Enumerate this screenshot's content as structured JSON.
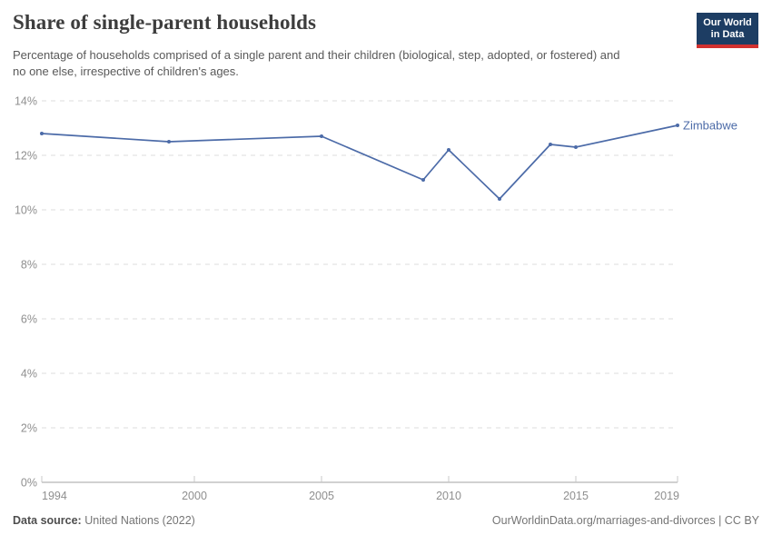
{
  "header": {
    "title": "Share of single-parent households",
    "subtitle": "Percentage of households comprised of a single parent and their children (biological, step, adopted, or fostered) and no one else, irrespective of children's ages.",
    "logo": {
      "line1": "Our World",
      "line2": "in Data"
    }
  },
  "chart_data": {
    "type": "line",
    "title": "Share of single-parent households",
    "x": [
      1994,
      1999,
      2005,
      2009,
      2010,
      2012,
      2014,
      2015,
      2019
    ],
    "series": [
      {
        "name": "Zimbabwe",
        "values": [
          12.8,
          12.5,
          12.7,
          11.1,
          12.2,
          10.4,
          12.4,
          12.3,
          13.1
        ]
      }
    ],
    "xlabel": "",
    "ylabel": "",
    "ylim": [
      0,
      14
    ],
    "y_ticks": [
      0,
      2,
      4,
      6,
      8,
      10,
      12,
      14
    ],
    "y_tick_suffix": "%",
    "x_ticks": [
      1994,
      2000,
      2005,
      2010,
      2015,
      2019
    ],
    "xlim": [
      1994,
      2019
    ],
    "grid": "dashed-horizontal",
    "legend_position": "end-of-line"
  },
  "colors": {
    "line": "#4c6ba8",
    "entity_label": "#4c6ba8",
    "grid": "#dedede",
    "axis": "#a3a3a3",
    "tick": "#c8c8c8",
    "tick_label": "#8f8f8f"
  },
  "footer": {
    "source_label": "Data source:",
    "source_value": "United Nations (2022)",
    "attribution": "OurWorldinData.org/marriages-and-divorces | CC BY"
  }
}
